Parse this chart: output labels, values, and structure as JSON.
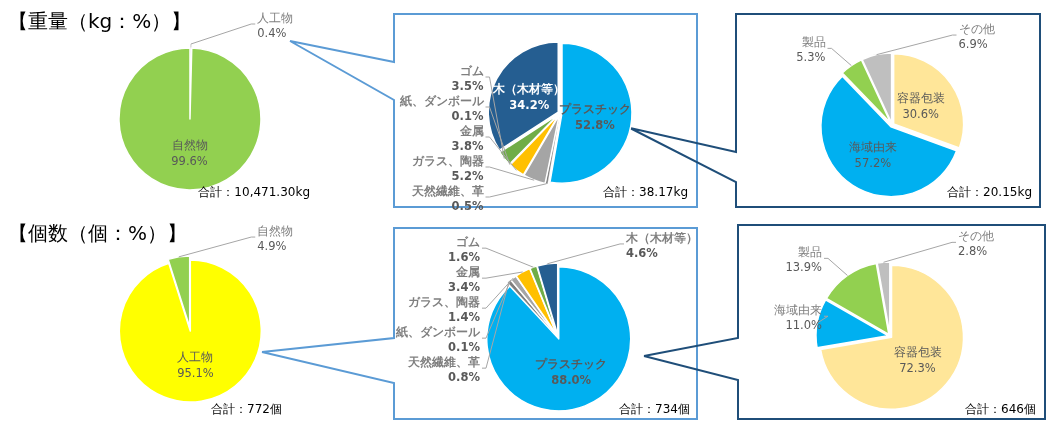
{
  "chart_data": [
    {
      "type": "pie",
      "title": "【重量（kg：%）】",
      "categories": [
        "人工物",
        "自然物"
      ],
      "values": [
        0.4,
        99.6
      ],
      "colors": [
        "#d9d9d9",
        "#92d050"
      ],
      "value_labels": [
        "0.4%",
        "99.6%"
      ],
      "annotations": [
        "合計：10,471.30kg"
      ]
    },
    {
      "type": "pie",
      "categories": [
        "プラスチック",
        "天然繊維、革",
        "ガラス、陶器",
        "金属",
        "紙、ダンボール",
        "ゴム",
        "木（木材等）"
      ],
      "values": [
        52.8,
        0.5,
        5.2,
        3.8,
        0.1,
        3.5,
        34.2
      ],
      "colors": [
        "#00b0f0",
        "#7f7f7f",
        "#a5a5a5",
        "#ffc000",
        "#f4b183",
        "#70ad47",
        "#255e91"
      ],
      "value_labels": [
        "52.8%",
        "0.5%",
        "5.2%",
        "3.8%",
        "0.1%",
        "3.5%",
        "34.2%"
      ],
      "annotations": [
        "合計：38.17kg"
      ]
    },
    {
      "type": "pie",
      "categories": [
        "容器包装",
        "海域由来",
        "製品",
        "その他"
      ],
      "values": [
        30.6,
        57.2,
        5.3,
        6.9
      ],
      "colors": [
        "#ffe699",
        "#00b0f0",
        "#92d050",
        "#bfbfbf"
      ],
      "value_labels": [
        "30.6%",
        "57.2%",
        "5.3%",
        "6.9%"
      ],
      "annotations": [
        "合計：20.15kg"
      ]
    },
    {
      "type": "pie",
      "title": "【個数（個：%）】",
      "categories": [
        "人工物",
        "自然物"
      ],
      "values": [
        95.1,
        4.9
      ],
      "colors": [
        "#ffff00",
        "#92d050"
      ],
      "value_labels": [
        "95.1%",
        "4.9%"
      ],
      "annotations": [
        "合計：772個"
      ]
    },
    {
      "type": "pie",
      "categories": [
        "プラスチック",
        "天然繊維、革",
        "紙、ダンボール",
        "ガラス、陶器",
        "金属",
        "ゴム",
        "木（木材等）"
      ],
      "values": [
        88.0,
        0.8,
        0.1,
        1.4,
        3.4,
        1.6,
        4.6
      ],
      "colors": [
        "#00b0f0",
        "#7f7f7f",
        "#f4b183",
        "#a5a5a5",
        "#ffc000",
        "#70ad47",
        "#255e91"
      ],
      "value_labels": [
        "88.0%",
        "0.8%",
        "0.1%",
        "1.4%",
        "3.4%",
        "1.6%",
        "4.6%"
      ],
      "annotations": [
        "合計：734個"
      ]
    },
    {
      "type": "pie",
      "categories": [
        "容器包装",
        "海域由来",
        "製品",
        "その他"
      ],
      "values": [
        72.3,
        11.0,
        13.9,
        2.8
      ],
      "colors": [
        "#ffe699",
        "#00b0f0",
        "#92d050",
        "#bfbfbf"
      ],
      "value_labels": [
        "72.3%",
        "11.0%",
        "13.9%",
        "2.8%"
      ],
      "annotations": [
        "合計：646個"
      ]
    }
  ]
}
